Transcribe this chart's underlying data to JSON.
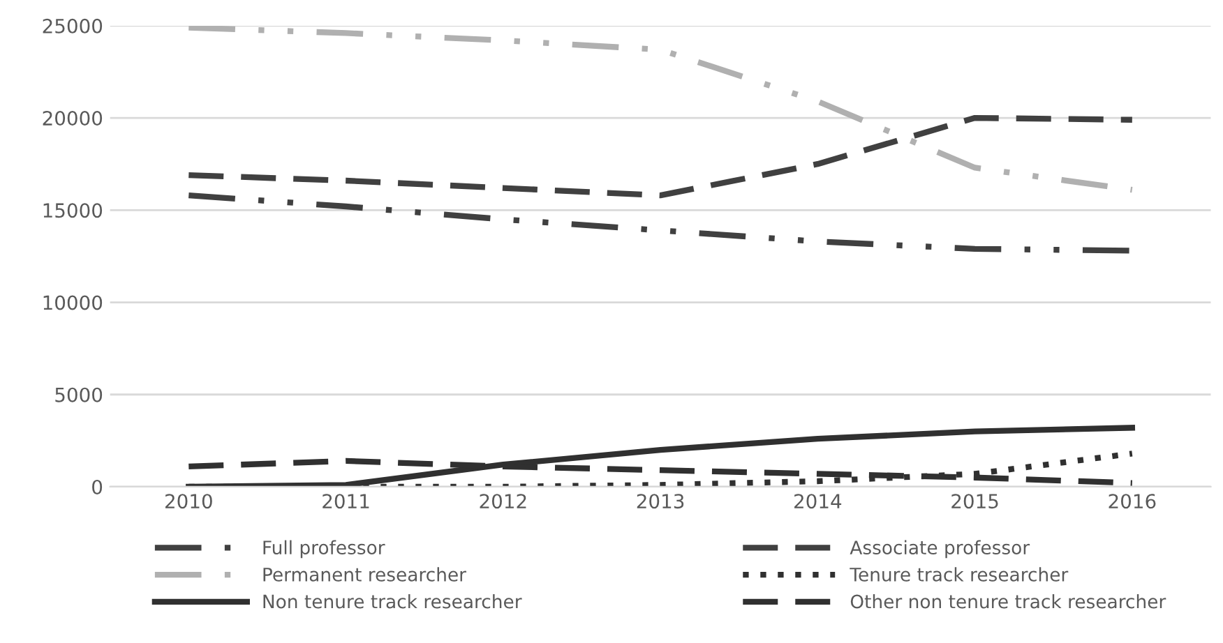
{
  "chart_data": {
    "type": "line",
    "categories": [
      "2010",
      "2011",
      "2012",
      "2013",
      "2014",
      "2015",
      "2016"
    ],
    "ylim": [
      0,
      25000
    ],
    "yticks": [
      0,
      5000,
      10000,
      15000,
      20000,
      25000
    ],
    "grid": "y",
    "legend": "bottom",
    "series": [
      {
        "name": "Full professor",
        "color": "#404040",
        "line_style": "dashdot",
        "values": [
          15800,
          15200,
          14500,
          13900,
          13300,
          12900,
          12800
        ]
      },
      {
        "name": "Associate professor",
        "color": "#404040",
        "line_style": "dashed",
        "values": [
          16900,
          16600,
          16200,
          15800,
          17500,
          20000,
          19900
        ]
      },
      {
        "name": "Permanent researcher",
        "color": "#b0b0b0",
        "line_style": "dashdot",
        "values": [
          24900,
          24600,
          24200,
          23700,
          20900,
          17300,
          16100
        ]
      },
      {
        "name": "Tenure track researcher",
        "color": "#303030",
        "line_style": "dotted",
        "values": [
          0,
          0,
          0,
          100,
          300,
          700,
          1800
        ]
      },
      {
        "name": "Non tenure track researcher",
        "color": "#303030",
        "line_style": "solid",
        "values": [
          0,
          100,
          1200,
          2000,
          2600,
          3000,
          3200
        ]
      },
      {
        "name": "Other non tenure track researcher",
        "color": "#303030",
        "line_style": "dashed",
        "values": [
          1100,
          1400,
          1100,
          900,
          700,
          500,
          200
        ]
      }
    ]
  }
}
